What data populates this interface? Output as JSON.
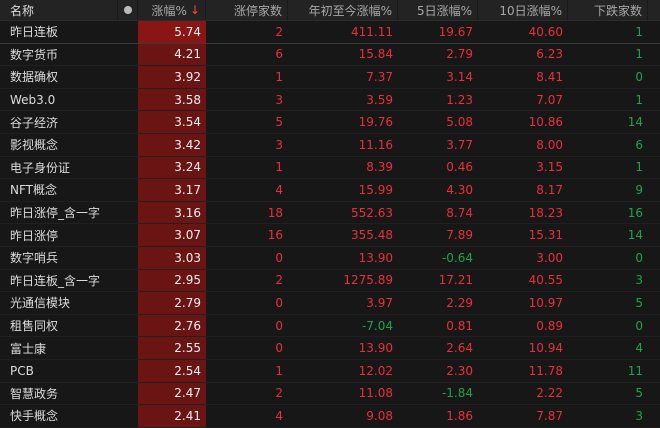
{
  "columns": {
    "name": "名称",
    "chg": "涨幅%",
    "sort_arrow": "↓",
    "limit_up": "涨停家数",
    "ytd": "年初至今涨幅%",
    "d5": "5日涨幅%",
    "d10": "10日涨幅%",
    "down": "下跌家数"
  },
  "colors": {
    "up": "#e8303a",
    "down": "#1fa34a",
    "highlight": "#6b1414"
  },
  "rows": [
    {
      "name": "昨日连板",
      "chg": "5.74",
      "limit_up": "2",
      "ytd": "411.11",
      "d5": "19.67",
      "d10": "40.60",
      "down": "1"
    },
    {
      "name": "数字货币",
      "chg": "4.21",
      "limit_up": "6",
      "ytd": "15.84",
      "d5": "2.79",
      "d10": "6.23",
      "down": "1"
    },
    {
      "name": "数据确权",
      "chg": "3.92",
      "limit_up": "1",
      "ytd": "7.37",
      "d5": "3.14",
      "d10": "8.41",
      "down": "0"
    },
    {
      "name": "Web3.0",
      "chg": "3.58",
      "limit_up": "3",
      "ytd": "3.59",
      "d5": "1.23",
      "d10": "7.07",
      "down": "1"
    },
    {
      "name": "谷子经济",
      "chg": "3.54",
      "limit_up": "5",
      "ytd": "19.76",
      "d5": "5.08",
      "d10": "10.86",
      "down": "14"
    },
    {
      "name": "影视概念",
      "chg": "3.42",
      "limit_up": "3",
      "ytd": "11.16",
      "d5": "3.77",
      "d10": "8.00",
      "down": "6"
    },
    {
      "name": "电子身份证",
      "chg": "3.24",
      "limit_up": "1",
      "ytd": "8.39",
      "d5": "0.46",
      "d10": "3.15",
      "down": "1"
    },
    {
      "name": "NFT概念",
      "chg": "3.17",
      "limit_up": "4",
      "ytd": "15.99",
      "d5": "4.30",
      "d10": "8.17",
      "down": "9"
    },
    {
      "name": "昨日涨停_含一字",
      "chg": "3.16",
      "limit_up": "18",
      "ytd": "552.63",
      "d5": "8.74",
      "d10": "18.23",
      "down": "16"
    },
    {
      "name": "昨日涨停",
      "chg": "3.07",
      "limit_up": "16",
      "ytd": "355.48",
      "d5": "7.89",
      "d10": "15.31",
      "down": "14"
    },
    {
      "name": "数字哨兵",
      "chg": "3.03",
      "limit_up": "0",
      "ytd": "13.90",
      "d5": "-0.64",
      "d10": "3.00",
      "down": "0"
    },
    {
      "name": "昨日连板_含一字",
      "chg": "2.95",
      "limit_up": "2",
      "ytd": "1275.89",
      "d5": "17.21",
      "d10": "40.55",
      "down": "3"
    },
    {
      "name": "光通信模块",
      "chg": "2.79",
      "limit_up": "0",
      "ytd": "3.97",
      "d5": "2.29",
      "d10": "10.97",
      "down": "5"
    },
    {
      "name": "租售同权",
      "chg": "2.76",
      "limit_up": "0",
      "ytd": "-7.04",
      "d5": "0.81",
      "d10": "0.89",
      "down": "0"
    },
    {
      "name": "富士康",
      "chg": "2.55",
      "limit_up": "0",
      "ytd": "13.90",
      "d5": "2.64",
      "d10": "10.94",
      "down": "4"
    },
    {
      "name": "PCB",
      "chg": "2.54",
      "limit_up": "1",
      "ytd": "12.02",
      "d5": "2.30",
      "d10": "11.78",
      "down": "11"
    },
    {
      "name": "智慧政务",
      "chg": "2.47",
      "limit_up": "2",
      "ytd": "11.08",
      "d5": "-1.84",
      "d10": "2.22",
      "down": "5"
    },
    {
      "name": "快手概念",
      "chg": "2.41",
      "limit_up": "4",
      "ytd": "9.08",
      "d5": "1.86",
      "d10": "7.87",
      "down": "3"
    }
  ]
}
